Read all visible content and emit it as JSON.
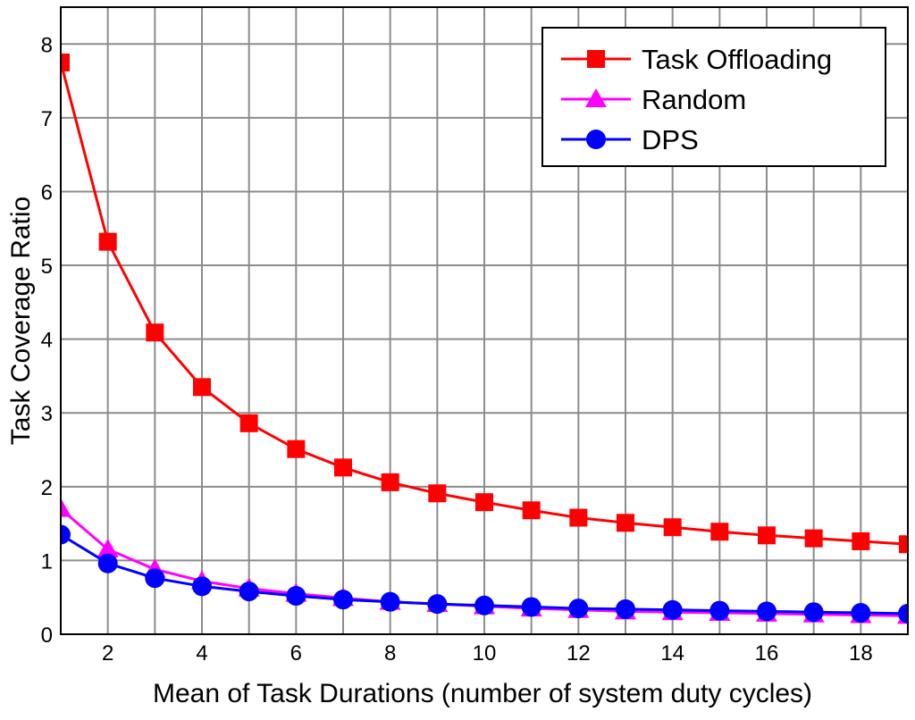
{
  "chart_data": {
    "type": "line",
    "title": "",
    "xlabel": "Mean of Task Durations (number of system duty cycles)",
    "ylabel": "Task Coverage Ratio",
    "xlim": [
      1,
      19
    ],
    "ylim": [
      0,
      8.5
    ],
    "x_ticks": [
      2,
      4,
      6,
      8,
      10,
      12,
      14,
      16,
      18
    ],
    "y_ticks": [
      0,
      1,
      2,
      3,
      4,
      5,
      6,
      7,
      8
    ],
    "grid": true,
    "legend_position": "top-right",
    "x": [
      1,
      2,
      3,
      4,
      5,
      6,
      7,
      8,
      9,
      10,
      11,
      12,
      13,
      14,
      15,
      16,
      17,
      18,
      19
    ],
    "series": [
      {
        "name": "Task Offloading",
        "color": "#ff0000",
        "marker": "square",
        "values": [
          7.75,
          5.32,
          4.09,
          3.35,
          2.86,
          2.51,
          2.26,
          2.06,
          1.91,
          1.79,
          1.68,
          1.58,
          1.51,
          1.45,
          1.39,
          1.34,
          1.3,
          1.26,
          1.22
        ]
      },
      {
        "name": "Random",
        "color": "#ff00ff",
        "marker": "triangle",
        "values": [
          1.7,
          1.15,
          0.88,
          0.72,
          0.62,
          0.55,
          0.49,
          0.44,
          0.41,
          0.38,
          0.35,
          0.33,
          0.31,
          0.3,
          0.29,
          0.28,
          0.27,
          0.26,
          0.25
        ]
      },
      {
        "name": "DPS",
        "color": "#0000ff",
        "marker": "circle",
        "values": [
          1.35,
          0.96,
          0.76,
          0.65,
          0.58,
          0.52,
          0.47,
          0.44,
          0.41,
          0.39,
          0.37,
          0.35,
          0.34,
          0.33,
          0.32,
          0.31,
          0.3,
          0.29,
          0.28
        ]
      }
    ]
  }
}
